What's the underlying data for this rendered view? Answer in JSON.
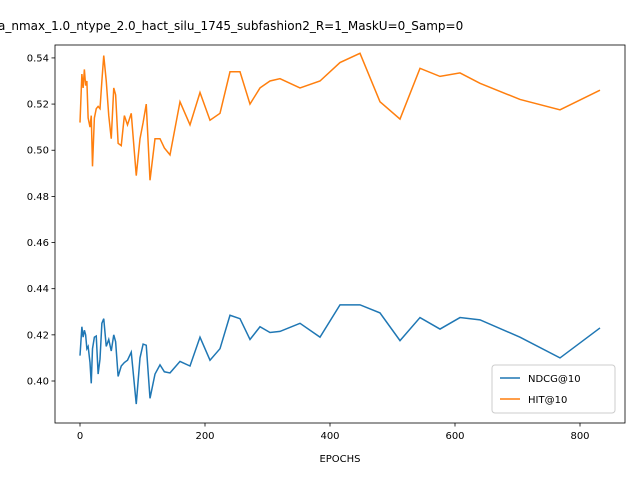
{
  "chart_data": {
    "type": "line",
    "title": "a_nmax_1.0_ntype_2.0_hact_silu_1745_subfashion2_R=1_MaskU=0_Samp=0",
    "x_label": "EPOCHS",
    "x": [
      0,
      3,
      5,
      7,
      9,
      11,
      13,
      16,
      18,
      20,
      23,
      26,
      29,
      32,
      35,
      38,
      42,
      46,
      50,
      54,
      57,
      61,
      66,
      71,
      76,
      82,
      90,
      96,
      101,
      106,
      112,
      120,
      128,
      135,
      144,
      160,
      176,
      192,
      208,
      224,
      240,
      256,
      272,
      288,
      304,
      320,
      352,
      384,
      416,
      448,
      480,
      512,
      544,
      576,
      608,
      640,
      704,
      768,
      832
    ],
    "series": [
      {
        "name": "NDCG@10",
        "color": "#1f77b4",
        "values": [
          0.411,
          0.4235,
          0.419,
          0.422,
          0.42,
          0.414,
          0.415,
          0.408,
          0.399,
          0.414,
          0.419,
          0.4195,
          0.403,
          0.4095,
          0.425,
          0.427,
          0.415,
          0.418,
          0.413,
          0.42,
          0.417,
          0.402,
          0.4065,
          0.408,
          0.409,
          0.4125,
          0.39,
          0.41,
          0.416,
          0.4155,
          0.3925,
          0.403,
          0.407,
          0.404,
          0.4035,
          0.4085,
          0.4065,
          0.419,
          0.409,
          0.414,
          0.4285,
          0.427,
          0.418,
          0.4235,
          0.421,
          0.4215,
          0.425,
          0.419,
          0.433,
          0.433,
          0.4295,
          0.4175,
          0.4275,
          0.4225,
          0.4275,
          0.4265,
          0.419,
          0.41,
          0.423
        ]
      },
      {
        "name": "HIT@10",
        "color": "#ff7f0e",
        "values": [
          0.512,
          0.533,
          0.527,
          0.535,
          0.528,
          0.53,
          0.514,
          0.51,
          0.515,
          0.493,
          0.514,
          0.518,
          0.519,
          0.518,
          0.53,
          0.541,
          0.53,
          0.515,
          0.505,
          0.527,
          0.524,
          0.503,
          0.502,
          0.515,
          0.511,
          0.516,
          0.489,
          0.505,
          0.512,
          0.52,
          0.487,
          0.505,
          0.505,
          0.501,
          0.498,
          0.521,
          0.511,
          0.525,
          0.513,
          0.516,
          0.534,
          0.534,
          0.52,
          0.527,
          0.53,
          0.531,
          0.527,
          0.53,
          0.538,
          0.542,
          0.521,
          0.5135,
          0.5355,
          0.532,
          0.5335,
          0.529,
          0.522,
          0.5175,
          0.526
        ]
      }
    ],
    "xlim": [
      -40,
      872
    ],
    "ylim": [
      0.3818,
      0.5456
    ],
    "xticks": [
      0,
      200,
      400,
      600,
      800
    ],
    "yticks": [
      {
        "value": 0.4,
        "label": "0.40"
      },
      0.42,
      0.44,
      0.46,
      0.48,
      {
        "value": 0.5,
        "label": "0.50"
      },
      0.52,
      0.54
    ],
    "legend": "lower right"
  }
}
